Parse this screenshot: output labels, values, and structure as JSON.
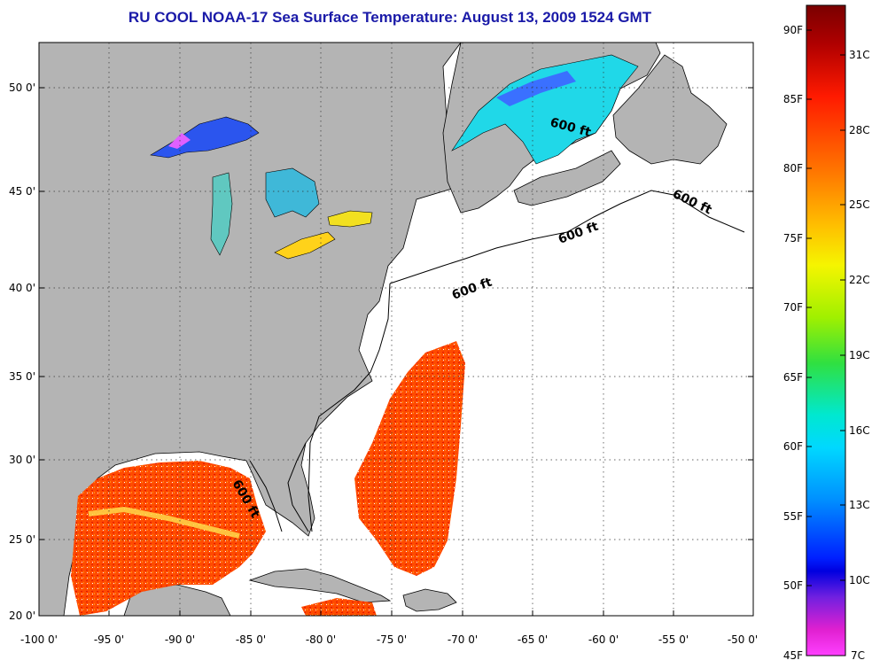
{
  "title": "RU COOL  NOAA-17  Sea Surface Temperature:  August 13, 2009 1524 GMT",
  "map": {
    "lon_labels": [
      "-100 0'",
      "-95 0'",
      "-90 0'",
      "-85 0'",
      "-80 0'",
      "-75 0'",
      "-70 0'",
      "-65 0'",
      "-60 0'",
      "-55 0'",
      "-50 0'"
    ],
    "lat_labels": [
      "50 0'",
      "45 0'",
      "40 0'",
      "35 0'",
      "30 0'",
      "25 0'",
      "20 0'"
    ],
    "contour_label": "600 ft",
    "colors": {
      "land": "#b4b4b4",
      "ocean_nodata": "#ffffff",
      "coast": "#000000"
    }
  },
  "colorbar": {
    "fahrenheit_labels": [
      "90F",
      "85F",
      "80F",
      "75F",
      "70F",
      "65F",
      "60F",
      "55F",
      "50F",
      "45F"
    ],
    "celsius_labels": [
      "31C",
      "28C",
      "25C",
      "22C",
      "19C",
      "16C",
      "13C",
      "10C",
      "7C"
    ],
    "range_c": [
      7,
      33
    ],
    "gradient": [
      "#7a0000",
      "#d40000",
      "#ff2a00",
      "#ff7a00",
      "#ffc000",
      "#f5f500",
      "#9cf000",
      "#30e040",
      "#00e0c0",
      "#00d8ff",
      "#0090ff",
      "#0030ff",
      "#0000ee",
      "#8020e0",
      "#ff20c0",
      "#ff40ff"
    ]
  }
}
